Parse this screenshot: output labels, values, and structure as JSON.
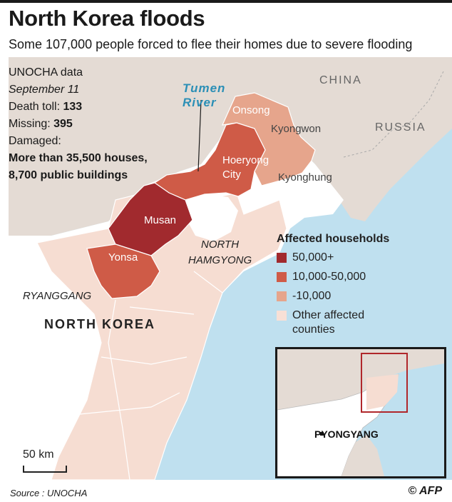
{
  "header": {
    "title": "North Korea floods",
    "subtitle": "Some 107,000 people forced to flee their homes due to severe flooding"
  },
  "info": {
    "source_line": "UNOCHA data",
    "date": "September 11",
    "death_label": "Death toll: ",
    "death_value": "133",
    "missing_label": "Missing: ",
    "missing_value": "395",
    "damaged_label": "Damaged:",
    "damaged_line1": "More than 35,500 houses,",
    "damaged_line2": "8,700 public buildings"
  },
  "map_labels": {
    "china": "CHINA",
    "russia": "RUSSIA",
    "river_line1": "Tumen",
    "river_line2": "River",
    "region": "NORTH",
    "region_line2": "HAMGYONG",
    "province": "RYANGGANG",
    "country": "NORTH KOREA"
  },
  "counties": [
    {
      "name": "Onsong",
      "category": "-10,000"
    },
    {
      "name": "Kyongwon",
      "category": "-10,000"
    },
    {
      "name": "Hoeryong",
      "category": "10,000-50,000"
    },
    {
      "name": "City",
      "category": "10,000-50,000"
    },
    {
      "name": "Kyonghung",
      "category": "-10,000"
    },
    {
      "name": "Musan",
      "category": "50,000+"
    },
    {
      "name": "Yonsa",
      "category": "10,000-50,000"
    }
  ],
  "legend": {
    "title": "Affected households",
    "items": [
      {
        "label": "50,000+",
        "color": "#a12a2e"
      },
      {
        "label": "10,000-50,000",
        "color": "#cf5b47"
      },
      {
        "label": "-10,000",
        "color": "#e6a58c"
      },
      {
        "label": "Other affected",
        "label_line2": "counties",
        "color": "#f8e0d6"
      }
    ]
  },
  "colors": {
    "sea": "#bfe0ef",
    "land_other_country": "#e4dbd4",
    "affected_other": "#f6ddd2",
    "border_line": "#ffffff"
  },
  "inset": {
    "city": "PYONGYANG"
  },
  "scale": {
    "label": "50 km"
  },
  "footer": {
    "source": "Source : UNOCHA",
    "credit": "© AFP"
  }
}
